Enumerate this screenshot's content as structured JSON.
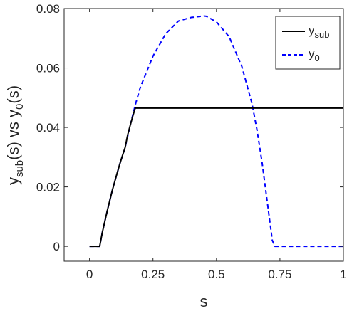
{
  "chart_data": {
    "type": "line",
    "xlabel": "s",
    "ylabel": {
      "main": "y",
      "sub1": "sub",
      "mid": "(s) vs y",
      "sub2": "0",
      "end": "(s)"
    },
    "xlim": [
      -0.1,
      1.0
    ],
    "ylim": [
      -0.005,
      0.08
    ],
    "xticks": [
      0,
      0.25,
      0.5,
      0.75,
      1
    ],
    "xtick_labels": [
      "0",
      "0.25",
      "0.5",
      "0.75",
      "1"
    ],
    "yticks": [
      0,
      0.02,
      0.04,
      0.06,
      0.08
    ],
    "ytick_labels": [
      "0",
      "0.02",
      "0.04",
      "0.06",
      "0.08"
    ],
    "grid": false,
    "legend_position": "top-right",
    "series": [
      {
        "legend_main": "y",
        "legend_sub": "sub",
        "color": "#000000",
        "style": "solid",
        "x": [
          0,
          0.04,
          0.05,
          0.06,
          0.07,
          0.08,
          0.09,
          0.1,
          0.11,
          0.12,
          0.13,
          0.14,
          0.15,
          0.16,
          0.17,
          0.18,
          1.0
        ],
        "y": [
          0,
          0,
          0.0045,
          0.0083,
          0.012,
          0.0155,
          0.0189,
          0.022,
          0.025,
          0.0279,
          0.0306,
          0.0332,
          0.0374,
          0.0406,
          0.0437,
          0.0465,
          0.0465
        ]
      },
      {
        "legend_main": "y",
        "legend_sub": "0",
        "color": "#0000ff",
        "style": "dashed",
        "x": [
          0,
          0.04,
          0.05,
          0.06,
          0.07,
          0.08,
          0.09,
          0.1,
          0.12,
          0.14,
          0.16,
          0.18,
          0.2,
          0.25,
          0.3,
          0.35,
          0.4,
          0.45,
          0.46,
          0.5,
          0.55,
          0.6,
          0.64,
          0.66,
          0.68,
          0.7,
          0.72,
          0.73,
          1.0
        ],
        "y": [
          0,
          0,
          0.0045,
          0.0083,
          0.012,
          0.0155,
          0.0189,
          0.022,
          0.0279,
          0.0332,
          0.0406,
          0.0475,
          0.0535,
          0.064,
          0.0715,
          0.0758,
          0.077,
          0.0775,
          0.0774,
          0.0755,
          0.0705,
          0.0605,
          0.048,
          0.039,
          0.028,
          0.015,
          0.002,
          0.0,
          0.0
        ]
      }
    ]
  }
}
